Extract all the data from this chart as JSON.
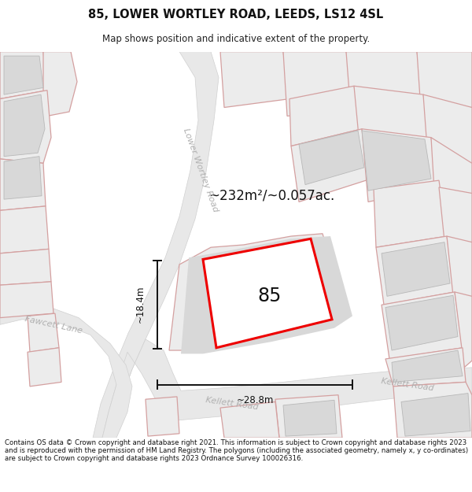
{
  "title_line1": "85, LOWER WORTLEY ROAD, LEEDS, LS12 4SL",
  "title_line2": "Map shows position and indicative extent of the property.",
  "footer_text": "Contains OS data © Crown copyright and database right 2021. This information is subject to Crown copyright and database rights 2023 and is reproduced with the permission of HM Land Registry. The polygons (including the associated geometry, namely x, y co-ordinates) are subject to Crown copyright and database rights 2023 Ordnance Survey 100026316.",
  "area_text": "~232m²/~0.057ac.",
  "label_85": "85",
  "dim_width": "~28.8m",
  "dim_height": "~18.4m",
  "road_label_lower_wortley": "Lower Wortley Road",
  "road_label_fawcett": "Fawcett Lane",
  "road_label_kellett1": "Kellett Road",
  "road_label_kellett2": "Kellett Road",
  "bg_color": "#ffffff",
  "map_bg": "#f0f0f0",
  "pink_line": "#d4a0a0",
  "red_outline": "#ee0000",
  "dim_line_color": "#111111",
  "gray_building": "#d8d8d8",
  "white_plot": "#ffffff",
  "road_fill": "#e8e8e8"
}
